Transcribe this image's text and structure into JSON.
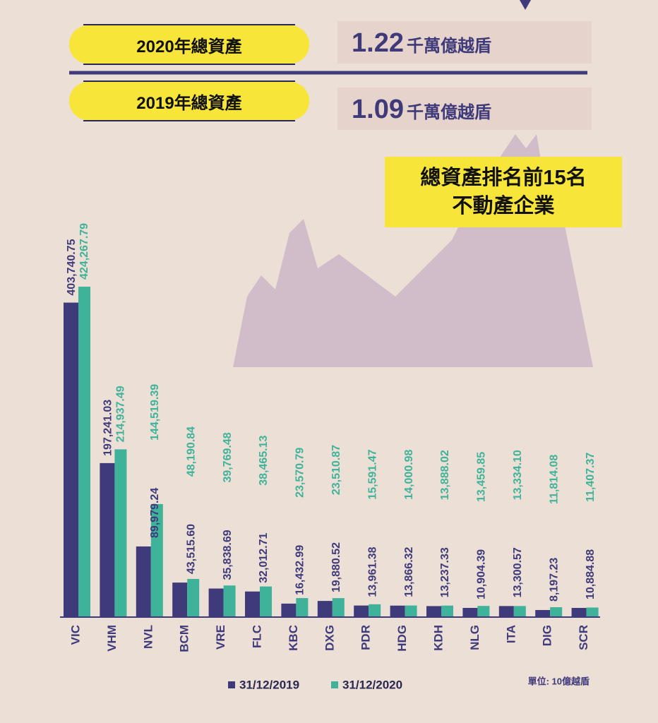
{
  "header": {
    "items": [
      {
        "label": "2020年總資產",
        "value": "1.22",
        "unit": "千萬億越盾"
      },
      {
        "label": "2019年總資產",
        "value": "1.09",
        "unit": "千萬億越盾"
      }
    ]
  },
  "chart_data": {
    "type": "bar",
    "title": "總資產排名前15名",
    "subtitle": "不動產企業",
    "unit_note": "單位: 10億越盾",
    "categories": [
      "VIC",
      "VHM",
      "NVL",
      "BCM",
      "VRE",
      "FLC",
      "KBC",
      "DXG",
      "PDR",
      "HDG",
      "KDH",
      "NLG",
      "ITA",
      "DIG",
      "SCR"
    ],
    "series": [
      {
        "name": "31/12/2019",
        "color": "#3f3a7a",
        "values": [
          403740.75,
          197241.03,
          89979.24,
          43515.6,
          35838.69,
          32012.71,
          16432.99,
          19880.52,
          13961.38,
          13866.32,
          13237.33,
          10904.39,
          13300.57,
          8197.23,
          10884.88
        ],
        "value_labels": [
          "403,740.75",
          "197,241.03",
          "89,979.24",
          "43,515.60",
          "35,838.69",
          "32,012.71",
          "16,432.99",
          "19,880.52",
          "13,961.38",
          "13,866.32",
          "13,237.33",
          "10,904.39",
          "13,300.57",
          "8,197.23",
          "10,884.88"
        ]
      },
      {
        "name": "31/12/2020",
        "color": "#3fb39a",
        "values": [
          424267.79,
          214937.49,
          144519.39,
          48190.84,
          39769.48,
          38465.13,
          23570.79,
          23510.87,
          15591.47,
          14000.98,
          13888.02,
          13459.85,
          13334.1,
          11814.08,
          11407.37
        ],
        "value_labels": [
          "424,267.79",
          "214,937.49",
          "144,519.39",
          "48,190.84",
          "39,769.48",
          "38,465.13",
          "23,570.79",
          "23,510.87",
          "15,591.47",
          "14,000.98",
          "13,888.02",
          "13,459.85",
          "13,334.10",
          "11,814.08",
          "11,407.37"
        ]
      }
    ]
  }
}
